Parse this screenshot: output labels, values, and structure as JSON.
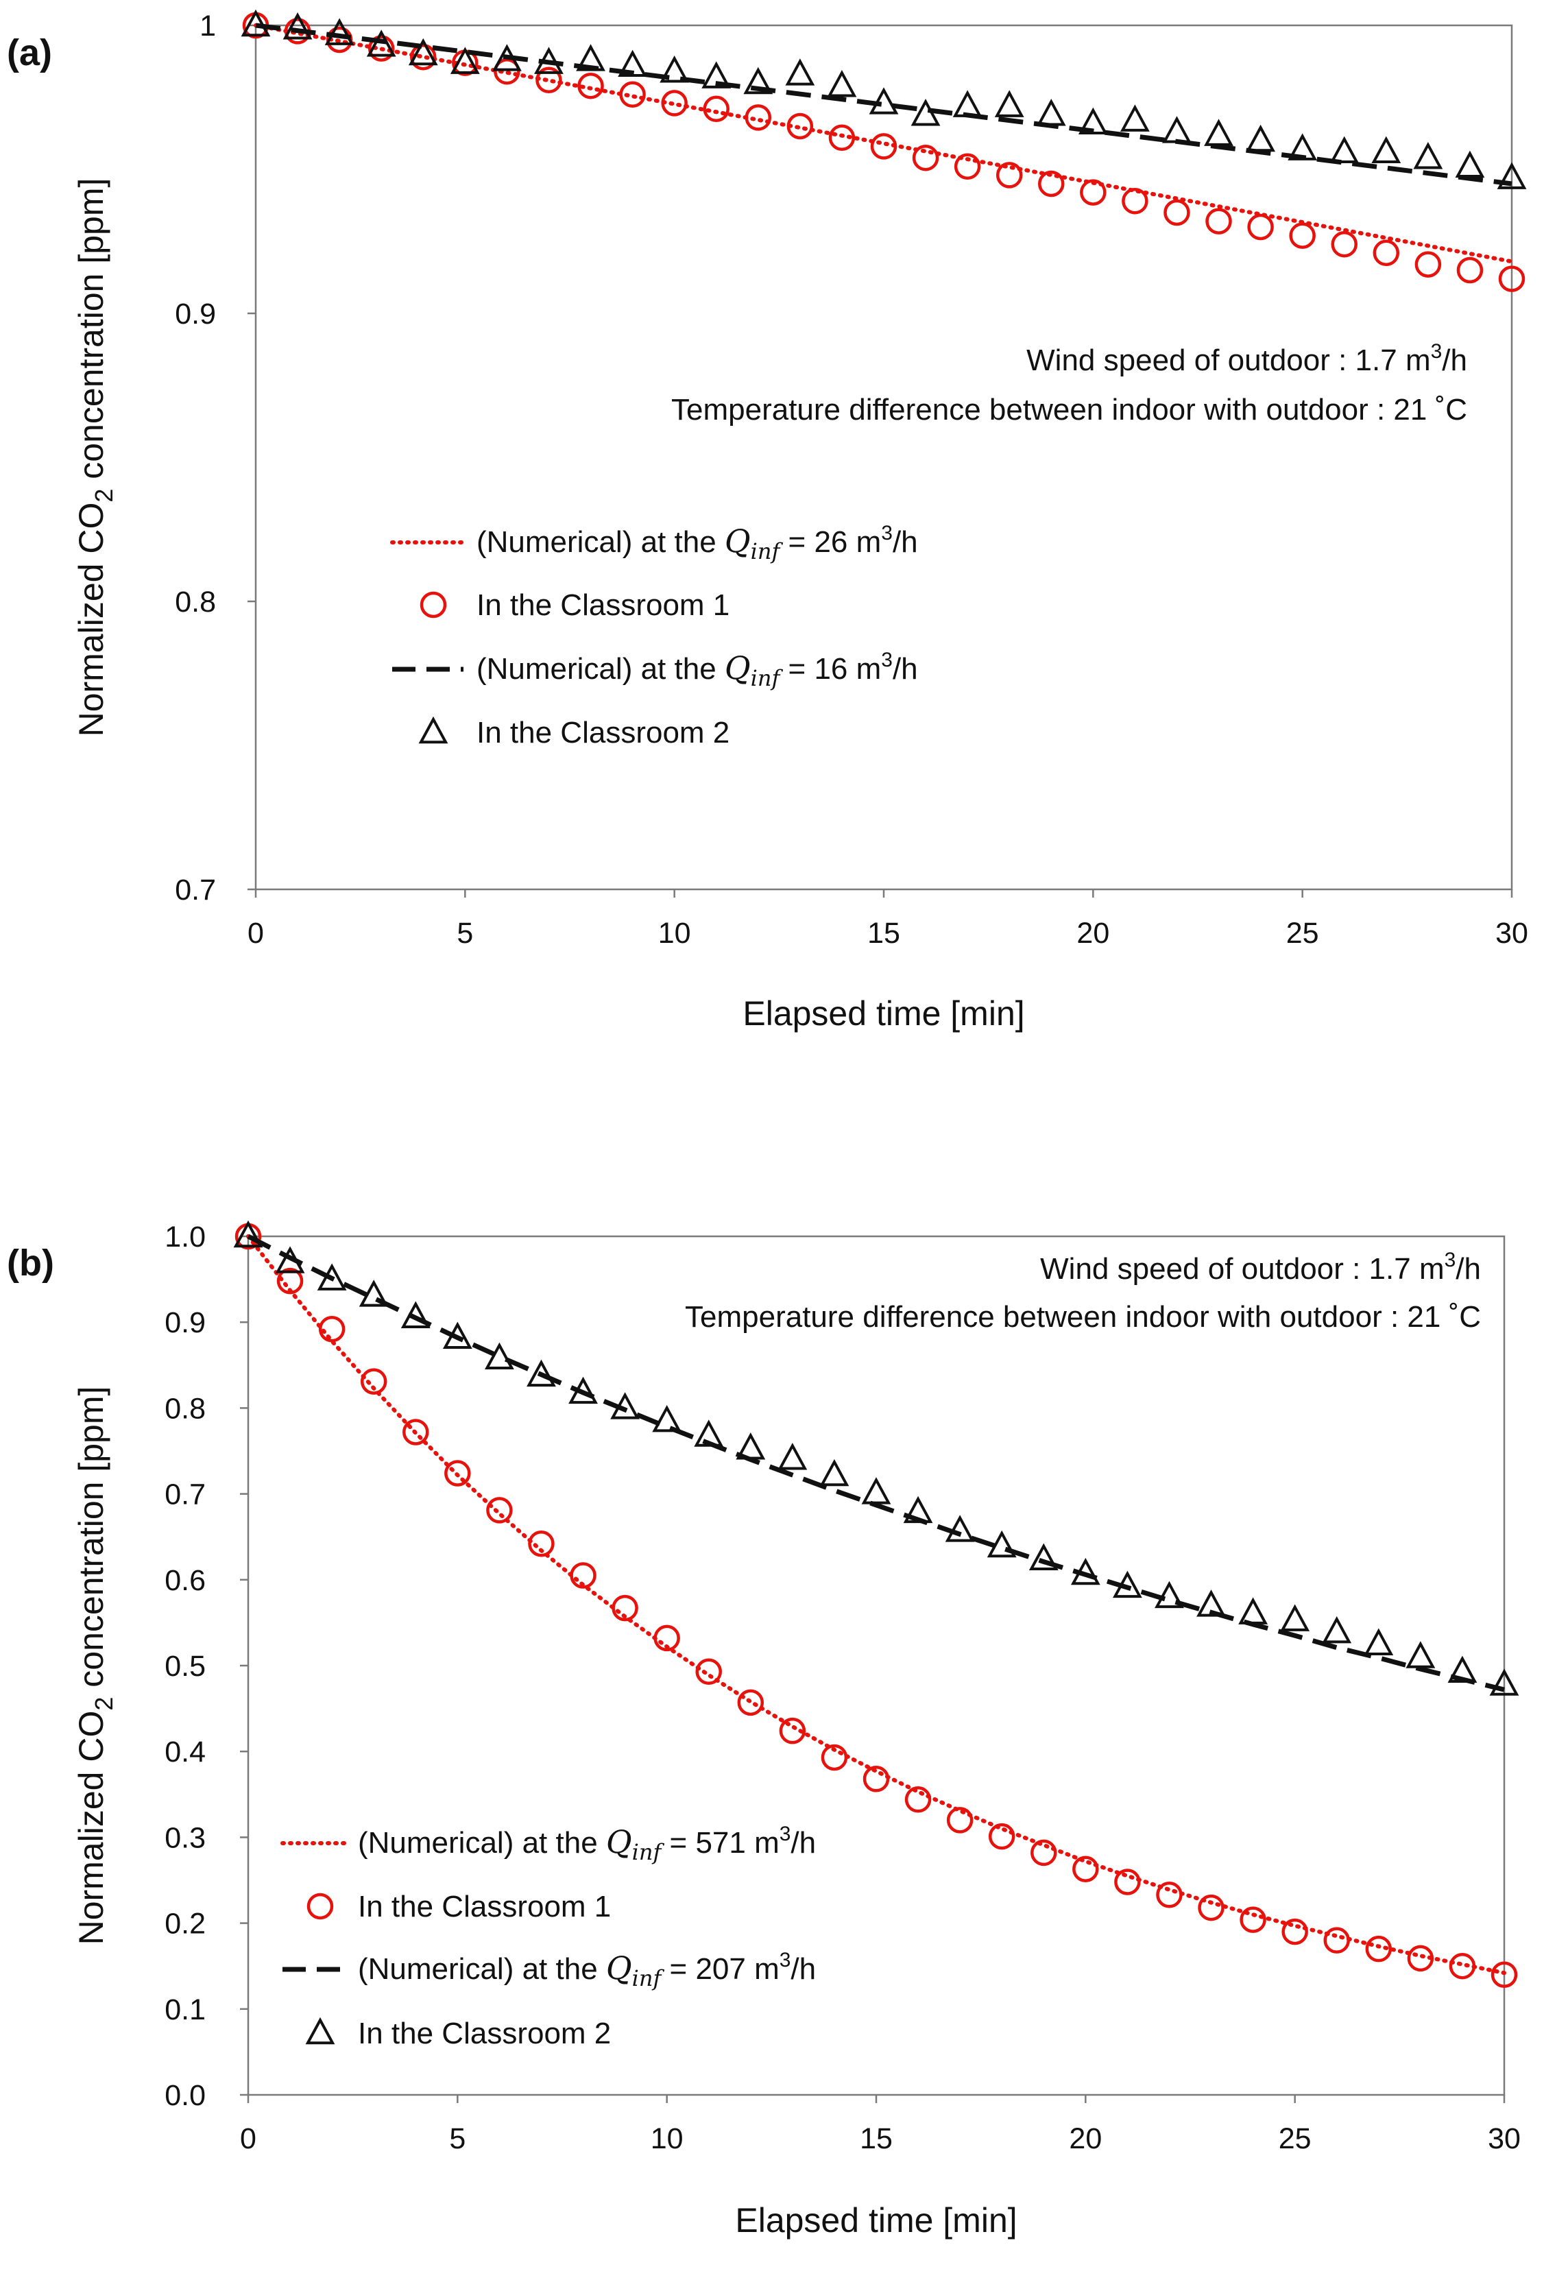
{
  "chart_data": [
    {
      "panel_label": "(a)",
      "type": "scatter",
      "ylabel_pre": "Normalized CO",
      "ylabel_sub": "2",
      "ylabel_post": " concentration [ppm]",
      "xlabel": "Elapsed time [min]",
      "xlim": [
        0,
        30
      ],
      "ylim": [
        0.7,
        1.0
      ],
      "xticks": [
        0,
        5,
        10,
        15,
        20,
        25,
        30
      ],
      "xtick_labels": [
        "0",
        "5",
        "10",
        "15",
        "20",
        "25",
        "30"
      ],
      "yticks": [
        0.7,
        0.8,
        0.9,
        1.0
      ],
      "ytick_labels": [
        "0.7",
        "0.8",
        "0.9",
        "1"
      ],
      "annotations": [
        {
          "pre": "Wind speed of outdoor : 1.7 m",
          "sup": "3",
          "post": "/h"
        },
        {
          "pre": "Temperature difference between indoor with outdoor : 21 ˚C",
          "sup": "",
          "post": ""
        }
      ],
      "series": [
        {
          "name": "(Numerical) at the Q_inf = 26 m3/h",
          "legend_pre": "(Numerical) at the ",
          "legend_q": "Q",
          "legend_qsub": "inf",
          "legend_eq": " = 26 m",
          "legend_sup": "3",
          "legend_post": "/h",
          "kind": "dotted-line",
          "color": "#e8120c",
          "x": [
            0,
            30
          ],
          "y": [
            1.0,
            0.918
          ]
        },
        {
          "name": "In the Classroom 1",
          "legend_pre": "In the Classroom 1",
          "kind": "circle",
          "color": "#e8120c",
          "x": [
            0,
            1,
            2,
            3,
            4,
            5,
            6,
            7,
            8,
            9,
            10,
            11,
            12,
            13,
            14,
            15,
            16,
            17,
            18,
            19,
            20,
            21,
            22,
            23,
            24,
            25,
            26,
            27,
            28,
            29,
            30
          ],
          "y": [
            1.0,
            0.998,
            0.995,
            0.992,
            0.989,
            0.987,
            0.984,
            0.981,
            0.979,
            0.976,
            0.973,
            0.971,
            0.968,
            0.965,
            0.961,
            0.958,
            0.954,
            0.951,
            0.948,
            0.945,
            0.942,
            0.939,
            0.935,
            0.932,
            0.93,
            0.927,
            0.924,
            0.921,
            0.917,
            0.915,
            0.912
          ]
        },
        {
          "name": "(Numerical) at the Q_inf = 16 m3/h",
          "legend_pre": "(Numerical) at the ",
          "legend_q": "Q",
          "legend_qsub": "inf",
          "legend_eq": " = 16 m",
          "legend_sup": "3",
          "legend_post": "/h",
          "kind": "dashed-line",
          "color": "#111111",
          "x": [
            0,
            30
          ],
          "y": [
            1.0,
            0.945
          ]
        },
        {
          "name": "In the Classroom 2",
          "legend_pre": "In the Classroom 2",
          "kind": "triangle",
          "color": "#111111",
          "x": [
            0,
            1,
            2,
            3,
            4,
            5,
            6,
            7,
            8,
            9,
            10,
            11,
            12,
            13,
            14,
            15,
            16,
            17,
            18,
            19,
            20,
            21,
            22,
            23,
            24,
            25,
            26,
            27,
            28,
            29,
            30
          ],
          "y": [
            1.0,
            0.999,
            0.997,
            0.993,
            0.99,
            0.987,
            0.988,
            0.987,
            0.988,
            0.986,
            0.984,
            0.982,
            0.98,
            0.983,
            0.979,
            0.973,
            0.969,
            0.972,
            0.972,
            0.969,
            0.966,
            0.967,
            0.963,
            0.962,
            0.96,
            0.957,
            0.956,
            0.956,
            0.954,
            0.951,
            0.947
          ]
        }
      ]
    },
    {
      "panel_label": "(b)",
      "type": "scatter",
      "ylabel_pre": "Normalized CO",
      "ylabel_sub": "2",
      "ylabel_post": " concentration [ppm]",
      "xlabel": "Elapsed time [min]",
      "xlim": [
        0,
        30
      ],
      "ylim": [
        0.0,
        1.0
      ],
      "xticks": [
        0,
        5,
        10,
        15,
        20,
        25,
        30
      ],
      "xtick_labels": [
        "0",
        "5",
        "10",
        "15",
        "20",
        "25",
        "30"
      ],
      "yticks": [
        0.0,
        0.1,
        0.2,
        0.3,
        0.4,
        0.5,
        0.6,
        0.7,
        0.8,
        0.9,
        1.0
      ],
      "ytick_labels": [
        "0.0",
        "0.1",
        "0.2",
        "0.3",
        "0.4",
        "0.5",
        "0.6",
        "0.7",
        "0.8",
        "0.9",
        "1.0"
      ],
      "annotations": [
        {
          "pre": "Wind speed of outdoor : 1.7 m",
          "sup": "3",
          "post": "/h"
        },
        {
          "pre": "Temperature difference between indoor with outdoor : 21 ˚C",
          "sup": "",
          "post": ""
        }
      ],
      "series": [
        {
          "name": "(Numerical) at the Q_inf = 571 m3/h",
          "legend_pre": "(Numerical) at the ",
          "legend_q": "Q",
          "legend_qsub": "inf",
          "legend_eq": " = 571 m",
          "legend_sup": "3",
          "legend_post": "/h",
          "kind": "dotted-line",
          "color": "#e8120c",
          "x": [
            0,
            1,
            2,
            3,
            4,
            5,
            6,
            7,
            8,
            9,
            10,
            11,
            12,
            13,
            14,
            15,
            16,
            17,
            18,
            19,
            20,
            21,
            22,
            23,
            24,
            25,
            26,
            27,
            28,
            29,
            30
          ],
          "y": [
            1.0,
            0.937,
            0.878,
            0.823,
            0.771,
            0.722,
            0.677,
            0.634,
            0.594,
            0.557,
            0.522,
            0.489,
            0.458,
            0.429,
            0.402,
            0.377,
            0.353,
            0.331,
            0.31,
            0.291,
            0.272,
            0.255,
            0.239,
            0.224,
            0.21,
            0.197,
            0.185,
            0.173,
            0.162,
            0.152,
            0.142
          ]
        },
        {
          "name": "In the Classroom 1",
          "legend_pre": "In the Classroom 1",
          "kind": "circle",
          "color": "#e8120c",
          "x": [
            0,
            1,
            2,
            3,
            4,
            5,
            6,
            7,
            8,
            9,
            10,
            11,
            12,
            13,
            14,
            15,
            16,
            17,
            18,
            19,
            20,
            21,
            22,
            23,
            24,
            25,
            26,
            27,
            28,
            29,
            30
          ],
          "y": [
            1.0,
            0.948,
            0.892,
            0.831,
            0.772,
            0.724,
            0.681,
            0.642,
            0.605,
            0.567,
            0.532,
            0.493,
            0.457,
            0.424,
            0.393,
            0.368,
            0.344,
            0.32,
            0.301,
            0.282,
            0.263,
            0.248,
            0.233,
            0.218,
            0.204,
            0.19,
            0.18,
            0.17,
            0.159,
            0.15,
            0.14
          ]
        },
        {
          "name": "(Numerical) at the Q_inf = 207 m3/h",
          "legend_pre": "(Numerical) at the ",
          "legend_q": "Q",
          "legend_qsub": "inf",
          "legend_eq": " = 207 m",
          "legend_sup": "3",
          "legend_post": "/h",
          "kind": "dashed-line",
          "color": "#111111",
          "x": [
            0,
            1,
            2,
            3,
            4,
            5,
            6,
            7,
            8,
            9,
            10,
            11,
            12,
            13,
            14,
            15,
            16,
            17,
            18,
            19,
            20,
            21,
            22,
            23,
            24,
            25,
            26,
            27,
            28,
            29,
            30
          ],
          "y": [
            1.0,
            0.975,
            0.951,
            0.928,
            0.905,
            0.882,
            0.86,
            0.839,
            0.818,
            0.798,
            0.778,
            0.759,
            0.74,
            0.722,
            0.704,
            0.687,
            0.67,
            0.653,
            0.637,
            0.621,
            0.606,
            0.591,
            0.576,
            0.562,
            0.548,
            0.535,
            0.521,
            0.509,
            0.496,
            0.484,
            0.472
          ]
        },
        {
          "name": "In the Classroom 2",
          "legend_pre": "In the Classroom 2",
          "kind": "triangle",
          "color": "#111111",
          "x": [
            0,
            1,
            2,
            3,
            4,
            5,
            6,
            7,
            8,
            9,
            10,
            11,
            12,
            13,
            14,
            15,
            16,
            17,
            18,
            19,
            20,
            21,
            22,
            23,
            24,
            25,
            26,
            27,
            28,
            29,
            30
          ],
          "y": [
            1.0,
            0.97,
            0.95,
            0.931,
            0.906,
            0.882,
            0.858,
            0.838,
            0.818,
            0.8,
            0.785,
            0.768,
            0.753,
            0.741,
            0.722,
            0.701,
            0.679,
            0.657,
            0.639,
            0.624,
            0.607,
            0.592,
            0.58,
            0.57,
            0.561,
            0.553,
            0.539,
            0.525,
            0.51,
            0.493,
            0.478
          ]
        }
      ]
    }
  ]
}
